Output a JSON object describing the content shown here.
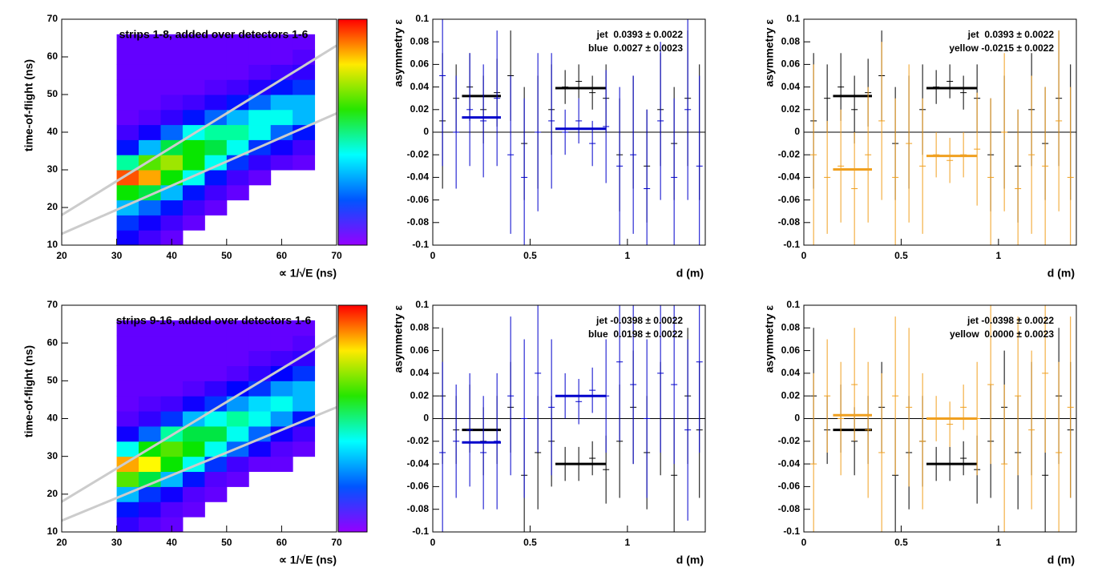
{
  "chart_data": [
    {
      "type": "heatmap",
      "title": "strips 1-8, added over detectors 1-6",
      "xlabel": "∝ 1/√E (ns)",
      "ylabel": "time-of-flight (ns)",
      "xlim": [
        20,
        70
      ],
      "xticks": [
        20,
        30,
        40,
        50,
        60,
        70
      ],
      "ylim": [
        10,
        70
      ],
      "yticks": [
        10,
        20,
        30,
        40,
        50,
        60,
        70
      ],
      "zlim": [
        0,
        7
      ],
      "xbins": [
        30,
        34,
        38,
        42,
        46,
        50,
        54,
        58,
        62,
        66
      ],
      "ybins": [
        10,
        14,
        18,
        22,
        26,
        30,
        34,
        38,
        42,
        46,
        50,
        54,
        58,
        62,
        66
      ],
      "z": [
        [
          0.8,
          0.5,
          0.3,
          0,
          0,
          0,
          0,
          0,
          0
        ],
        [
          1.2,
          0.8,
          0.5,
          0.3,
          0,
          0,
          0,
          0,
          0
        ],
        [
          2.0,
          1.5,
          1.0,
          0.5,
          0.3,
          0,
          0,
          0,
          0
        ],
        [
          4.0,
          3.5,
          2.0,
          1.0,
          0.5,
          0.3,
          0,
          0,
          0
        ],
        [
          6.5,
          6.0,
          4.0,
          2.5,
          1.0,
          0.5,
          0.3,
          0,
          0
        ],
        [
          3.0,
          4.5,
          5.0,
          4.0,
          2.5,
          1.2,
          0.6,
          0.4,
          0.3
        ],
        [
          1.0,
          2.0,
          3.5,
          4.0,
          3.5,
          2.5,
          1.2,
          0.8,
          0.5
        ],
        [
          0.5,
          0.8,
          1.5,
          2.5,
          3.0,
          3.0,
          2.5,
          1.5,
          1.0
        ],
        [
          0.3,
          0.4,
          0.6,
          1.0,
          1.5,
          2.0,
          2.5,
          2.5,
          2.0
        ],
        [
          0.3,
          0.3,
          0.4,
          0.5,
          0.7,
          1.0,
          1.5,
          2.0,
          2.0
        ],
        [
          0.3,
          0.3,
          0.3,
          0.3,
          0.4,
          0.5,
          0.7,
          1.0,
          1.2
        ],
        [
          0.3,
          0.3,
          0.3,
          0.3,
          0.3,
          0.3,
          0.4,
          0.5,
          0.6
        ],
        [
          0.3,
          0.3,
          0.3,
          0.3,
          0.3,
          0.3,
          0.3,
          0.3,
          0.4
        ],
        [
          0.3,
          0.3,
          0.3,
          0.3,
          0.3,
          0.3,
          0.3,
          0.3,
          0.3
        ]
      ],
      "lines": [
        {
          "x": [
            20,
            70
          ],
          "y": [
            18,
            63
          ],
          "color": "#cccccc"
        },
        {
          "x": [
            20,
            70
          ],
          "y": [
            13,
            45
          ],
          "color": "#cccccc"
        }
      ]
    },
    {
      "type": "scatter",
      "xlabel": "d (m)",
      "ylabel": "asymmetry ε",
      "xlim": [
        0,
        1.4
      ],
      "xticks": [
        0,
        0.5,
        1
      ],
      "ylim": [
        -0.1,
        0.1
      ],
      "yticks": [
        -0.1,
        -0.08,
        -0.06,
        -0.04,
        -0.02,
        0,
        0.02,
        0.04,
        0.06,
        0.08,
        0.1
      ],
      "x": [
        0.05,
        0.12,
        0.19,
        0.26,
        0.33,
        0.4,
        0.47,
        0.54,
        0.61,
        0.68,
        0.75,
        0.82,
        0.89,
        0.96,
        1.03,
        1.1,
        1.17,
        1.24,
        1.31,
        1.37
      ],
      "series": [
        {
          "label": "jet  0.0393 ± 0.0022",
          "color": "#000000",
          "values": [
            0.01,
            0.03,
            0.04,
            0.02,
            0.035,
            0.05,
            -0.01,
            0.0,
            0.02,
            0.04,
            0.045,
            0.035,
            0.03,
            -0.02,
            0.0,
            -0.03,
            0.02,
            -0.01,
            0.03,
            0.0
          ],
          "errors": [
            0.06,
            0.03,
            0.03,
            0.03,
            0.03,
            0.04,
            0.05,
            0.05,
            0.04,
            0.015,
            0.015,
            0.015,
            0.03,
            0.05,
            0.05,
            0.05,
            0.05,
            0.05,
            0.06,
            0.06
          ],
          "fits": [
            {
              "x": [
                0.15,
                0.35
              ],
              "value": 0.032
            },
            {
              "x": [
                0.63,
                0.89
              ],
              "value": 0.039
            }
          ]
        },
        {
          "label": "blue  0.0027 ± 0.0023",
          "color": "#0000cc",
          "values": [
            0.05,
            0.0,
            0.02,
            0.01,
            0.03,
            -0.02,
            -0.04,
            0.0,
            0.01,
            0.0,
            0.01,
            -0.01,
            0.005,
            -0.03,
            -0.02,
            -0.05,
            0.01,
            -0.04,
            0.02,
            -0.03
          ],
          "errors": [
            0.08,
            0.05,
            0.05,
            0.05,
            0.06,
            0.07,
            0.07,
            0.07,
            0.06,
            0.02,
            0.02,
            0.02,
            0.05,
            0.07,
            0.07,
            0.07,
            0.07,
            0.07,
            0.08,
            0.08
          ],
          "fits": [
            {
              "x": [
                0.15,
                0.35
              ],
              "value": 0.013
            },
            {
              "x": [
                0.63,
                0.89
              ],
              "value": 0.003
            }
          ]
        }
      ]
    },
    {
      "type": "scatter",
      "xlabel": "d (m)",
      "ylabel": "asymmetry ε",
      "xlim": [
        0,
        1.4
      ],
      "xticks": [
        0,
        0.5,
        1
      ],
      "ylim": [
        -0.1,
        0.1
      ],
      "yticks": [
        -0.1,
        -0.08,
        -0.06,
        -0.04,
        -0.02,
        0,
        0.02,
        0.04,
        0.06,
        0.08,
        0.1
      ],
      "x": [
        0.05,
        0.12,
        0.19,
        0.26,
        0.33,
        0.4,
        0.47,
        0.54,
        0.61,
        0.68,
        0.75,
        0.82,
        0.89,
        0.96,
        1.03,
        1.1,
        1.17,
        1.24,
        1.31,
        1.37
      ],
      "series": [
        {
          "label": "jet  0.0393 ± 0.0022",
          "color": "#000000",
          "values": [
            0.01,
            0.03,
            0.04,
            0.02,
            0.035,
            0.05,
            -0.01,
            0.0,
            0.02,
            0.04,
            0.045,
            0.035,
            0.03,
            -0.02,
            0.0,
            -0.03,
            0.02,
            -0.01,
            0.03,
            0.0
          ],
          "errors": [
            0.06,
            0.03,
            0.03,
            0.03,
            0.03,
            0.04,
            0.05,
            0.05,
            0.04,
            0.015,
            0.015,
            0.015,
            0.03,
            0.05,
            0.05,
            0.05,
            0.05,
            0.05,
            0.06,
            0.06
          ],
          "fits": [
            {
              "x": [
                0.15,
                0.35
              ],
              "value": 0.032
            },
            {
              "x": [
                0.63,
                0.89
              ],
              "value": 0.039
            }
          ]
        },
        {
          "label": "yellow -0.0215 ± 0.0022",
          "color": "#f0a020",
          "values": [
            -0.02,
            -0.04,
            -0.03,
            -0.05,
            -0.02,
            0.01,
            -0.04,
            -0.01,
            -0.03,
            -0.02,
            -0.025,
            -0.02,
            -0.015,
            -0.04,
            0.0,
            -0.05,
            -0.02,
            -0.03,
            0.01,
            -0.04
          ],
          "errors": [
            0.08,
            0.05,
            0.05,
            0.05,
            0.06,
            0.07,
            0.07,
            0.07,
            0.06,
            0.02,
            0.02,
            0.02,
            0.05,
            0.07,
            0.07,
            0.07,
            0.07,
            0.07,
            0.08,
            0.08
          ],
          "fits": [
            {
              "x": [
                0.15,
                0.35
              ],
              "value": -0.033
            },
            {
              "x": [
                0.63,
                0.89
              ],
              "value": -0.021
            }
          ]
        }
      ]
    },
    {
      "type": "heatmap",
      "title": "strips 9-16, added over detectors 1-6",
      "xlabel": "∝ 1/√E (ns)",
      "ylabel": "time-of-flight (ns)",
      "xlim": [
        20,
        70
      ],
      "xticks": [
        20,
        30,
        40,
        50,
        60,
        70
      ],
      "ylim": [
        10,
        70
      ],
      "yticks": [
        10,
        20,
        30,
        40,
        50,
        60,
        70
      ],
      "zlim": [
        0,
        7
      ],
      "xbins": [
        30,
        34,
        38,
        42,
        46,
        50,
        54,
        58,
        62,
        66
      ],
      "ybins": [
        10,
        14,
        18,
        22,
        26,
        30,
        34,
        38,
        42,
        46,
        50,
        54,
        58,
        62,
        66
      ],
      "z": [
        [
          0.6,
          0.4,
          0.3,
          0,
          0,
          0,
          0,
          0,
          0
        ],
        [
          1.0,
          0.7,
          0.4,
          0.3,
          0,
          0,
          0,
          0,
          0
        ],
        [
          2.0,
          1.2,
          0.8,
          0.4,
          0.3,
          0,
          0,
          0,
          0
        ],
        [
          4.5,
          3.5,
          2.0,
          1.0,
          0.4,
          0.3,
          0,
          0,
          0
        ],
        [
          6.0,
          5.5,
          4.0,
          2.5,
          1.2,
          0.5,
          0.3,
          0.3,
          0
        ],
        [
          2.5,
          4.0,
          4.5,
          4.0,
          2.5,
          1.5,
          0.8,
          0.4,
          0.3
        ],
        [
          0.8,
          1.5,
          3.0,
          3.5,
          3.5,
          2.5,
          1.5,
          0.8,
          0.5
        ],
        [
          0.4,
          0.6,
          1.2,
          2.0,
          2.5,
          3.0,
          2.5,
          1.8,
          1.0
        ],
        [
          0.3,
          0.4,
          0.5,
          0.8,
          1.2,
          1.8,
          2.2,
          2.5,
          2.0
        ],
        [
          0.3,
          0.3,
          0.3,
          0.4,
          0.6,
          0.9,
          1.2,
          1.8,
          2.0
        ],
        [
          0.3,
          0.3,
          0.3,
          0.3,
          0.3,
          0.4,
          0.6,
          0.9,
          1.2
        ],
        [
          0.3,
          0.3,
          0.3,
          0.3,
          0.3,
          0.3,
          0.4,
          0.5,
          0.6
        ],
        [
          0.3,
          0.3,
          0.3,
          0.3,
          0.3,
          0.3,
          0.3,
          0.3,
          0.4
        ],
        [
          0.3,
          0.3,
          0.3,
          0.3,
          0.3,
          0.3,
          0.3,
          0.3,
          0.3
        ]
      ],
      "lines": [
        {
          "x": [
            20,
            70
          ],
          "y": [
            18,
            62
          ],
          "color": "#cccccc"
        },
        {
          "x": [
            20,
            70
          ],
          "y": [
            13,
            43
          ],
          "color": "#cccccc"
        }
      ]
    },
    {
      "type": "scatter",
      "xlabel": "d (m)",
      "ylabel": "asymmetry ε",
      "xlim": [
        0,
        1.4
      ],
      "xticks": [
        0,
        0.5,
        1
      ],
      "ylim": [
        -0.1,
        0.1
      ],
      "yticks": [
        -0.1,
        -0.08,
        -0.06,
        -0.04,
        -0.02,
        0,
        0.02,
        0.04,
        0.06,
        0.08,
        0.1
      ],
      "x": [
        0.05,
        0.12,
        0.19,
        0.26,
        0.33,
        0.4,
        0.47,
        0.54,
        0.61,
        0.68,
        0.75,
        0.82,
        0.89,
        0.96,
        1.03,
        1.1,
        1.17,
        1.24,
        1.31,
        1.37
      ],
      "series": [
        {
          "label": "jet -0.0398 ± 0.0022",
          "color": "#000000",
          "values": [
            0.02,
            -0.01,
            0.0,
            -0.02,
            -0.01,
            0.01,
            -0.05,
            -0.03,
            -0.02,
            -0.04,
            -0.04,
            -0.035,
            -0.045,
            -0.02,
            0.01,
            -0.03,
            0.0,
            -0.05,
            0.02,
            -0.01
          ],
          "errors": [
            0.06,
            0.03,
            0.03,
            0.03,
            0.03,
            0.04,
            0.05,
            0.05,
            0.04,
            0.015,
            0.015,
            0.015,
            0.03,
            0.05,
            0.05,
            0.05,
            0.05,
            0.05,
            0.06,
            0.06
          ],
          "fits": [
            {
              "x": [
                0.15,
                0.35
              ],
              "value": -0.01
            },
            {
              "x": [
                0.63,
                0.89
              ],
              "value": -0.04
            }
          ]
        },
        {
          "label": "blue  0.0198 ± 0.0022",
          "color": "#0000cc",
          "values": [
            -0.03,
            -0.02,
            -0.01,
            -0.03,
            -0.02,
            0.02,
            0.0,
            0.04,
            0.01,
            0.02,
            0.015,
            0.025,
            0.02,
            0.05,
            0.03,
            0.0,
            0.04,
            0.03,
            -0.01,
            0.05
          ],
          "errors": [
            0.08,
            0.05,
            0.05,
            0.05,
            0.06,
            0.07,
            0.07,
            0.07,
            0.06,
            0.02,
            0.02,
            0.02,
            0.05,
            0.07,
            0.07,
            0.07,
            0.07,
            0.07,
            0.08,
            0.08
          ],
          "fits": [
            {
              "x": [
                0.15,
                0.35
              ],
              "value": -0.021
            },
            {
              "x": [
                0.63,
                0.89
              ],
              "value": 0.02
            }
          ]
        }
      ]
    },
    {
      "type": "scatter",
      "xlabel": "d (m)",
      "ylabel": "asymmetry ε",
      "xlim": [
        0,
        1.4
      ],
      "xticks": [
        0,
        0.5,
        1
      ],
      "ylim": [
        -0.1,
        0.1
      ],
      "yticks": [
        -0.1,
        -0.08,
        -0.06,
        -0.04,
        -0.02,
        0,
        0.02,
        0.04,
        0.06,
        0.08,
        0.1
      ],
      "x": [
        0.05,
        0.12,
        0.19,
        0.26,
        0.33,
        0.4,
        0.47,
        0.54,
        0.61,
        0.68,
        0.75,
        0.82,
        0.89,
        0.96,
        1.03,
        1.1,
        1.17,
        1.24,
        1.31,
        1.37
      ],
      "series": [
        {
          "label": "jet -0.0398 ± 0.0022",
          "color": "#000000",
          "values": [
            0.02,
            -0.01,
            0.0,
            -0.02,
            -0.01,
            0.01,
            -0.05,
            -0.03,
            -0.02,
            -0.04,
            -0.04,
            -0.035,
            -0.045,
            -0.02,
            0.01,
            -0.03,
            0.0,
            -0.05,
            0.02,
            -0.01
          ],
          "errors": [
            0.06,
            0.03,
            0.03,
            0.03,
            0.03,
            0.04,
            0.05,
            0.05,
            0.04,
            0.015,
            0.015,
            0.015,
            0.03,
            0.05,
            0.05,
            0.05,
            0.05,
            0.05,
            0.06,
            0.06
          ],
          "fits": [
            {
              "x": [
                0.15,
                0.35
              ],
              "value": -0.01
            },
            {
              "x": [
                0.63,
                0.89
              ],
              "value": -0.04
            }
          ]
        },
        {
          "label": "yellow  0.0000 ± 0.0023",
          "color": "#f0a020",
          "values": [
            -0.04,
            0.02,
            0.0,
            0.03,
            -0.01,
            -0.03,
            0.02,
            0.01,
            -0.02,
            0.0,
            -0.005,
            0.01,
            0.0,
            0.03,
            -0.04,
            0.02,
            -0.01,
            0.04,
            -0.03,
            0.01
          ],
          "errors": [
            0.08,
            0.05,
            0.05,
            0.05,
            0.06,
            0.07,
            0.07,
            0.07,
            0.06,
            0.02,
            0.02,
            0.02,
            0.05,
            0.07,
            0.07,
            0.07,
            0.07,
            0.07,
            0.08,
            0.08
          ],
          "fits": [
            {
              "x": [
                0.15,
                0.35
              ],
              "value": 0.003
            },
            {
              "x": [
                0.63,
                0.89
              ],
              "value": 0.0
            }
          ]
        }
      ]
    }
  ]
}
